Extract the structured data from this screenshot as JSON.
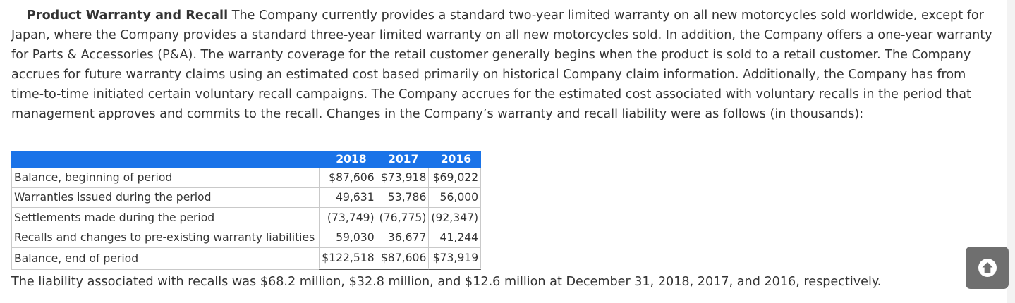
{
  "paragraph": {
    "heading": "Product Warranty and Recall",
    "body": " The Company currently provides a standard two-year limited warranty on all new motorcycles sold worldwide, except for Japan, where the Company provides a standard three-year limited warranty on all new motorcycles sold. In addition, the Company offers a one-year warranty for Parts & Accessories (P&A). The warranty coverage for the retail customer generally begins when the product is sold to a retail customer. The Company accrues for future warranty claims using an estimated cost based primarily on historical Company claim information. Additionally, the Company has from time-to-time initiated certain voluntary recall campaigns. The Company accrues for the estimated cost associated with voluntary recalls in the period that management approves and commits to the recall. Changes in the Company’s warranty and recall liability were as follows (in thousands):"
  },
  "table": {
    "headers": [
      "2018",
      "2017",
      "2016"
    ],
    "rows": [
      {
        "label": "Balance, beginning of period",
        "values": [
          "$87,606",
          "$73,918",
          "$69,022"
        ]
      },
      {
        "label": "Warranties issued during the period",
        "values": [
          "49,631",
          "53,786",
          "56,000"
        ]
      },
      {
        "label": "Settlements made during the period",
        "values": [
          "(73,749)",
          "(76,775)",
          "(92,347)"
        ]
      },
      {
        "label": "Recalls and changes to pre-existing warranty liabilities",
        "values": [
          "59,030",
          "36,677",
          "41,244"
        ]
      },
      {
        "label": "Balance, end of period",
        "values": [
          "$122,518",
          "$87,606",
          "$73,919"
        ]
      }
    ],
    "header_color": "#1a73e8"
  },
  "footer": {
    "text": "The liability associated with recalls was $68.2 million, $32.8 million, and $12.6 million at December 31, 2018, 2017, and 2016, respectively."
  },
  "scroll_button": {
    "icon": "arrow-up-circle-icon",
    "color": "#6f6f6f"
  }
}
